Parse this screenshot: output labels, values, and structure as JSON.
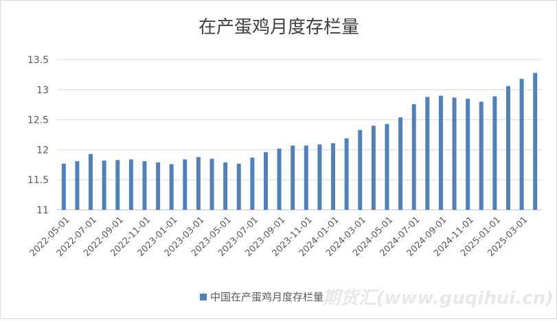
{
  "watermark": "期货汇(www.guqihui.cn)",
  "chart_data": {
    "type": "bar",
    "title": "在产蛋鸡月度存栏量",
    "xlabel": "",
    "ylabel": "",
    "ylim": [
      11,
      13.5
    ],
    "yticks": [
      11,
      11.5,
      12,
      12.5,
      13,
      13.5
    ],
    "grid": true,
    "legend_position": "bottom",
    "bar_color": "#4F81BD",
    "categories": [
      "2022-05-01",
      "2022-06-01",
      "2022-07-01",
      "2022-08-01",
      "2022-09-01",
      "2022-10-01",
      "2022-11-01",
      "2022-12-01",
      "2023-01-01",
      "2023-02-01",
      "2023-03-01",
      "2023-04-01",
      "2023-05-01",
      "2023-06-01",
      "2023-07-01",
      "2023-08-01",
      "2023-09-01",
      "2023-10-01",
      "2023-11-01",
      "2023-12-01",
      "2024-01-01",
      "2024-02-01",
      "2024-03-01",
      "2024-04-01",
      "2024-05-01",
      "2024-06-01",
      "2024-07-01",
      "2024-08-01",
      "2024-09-01",
      "2024-10-01",
      "2024-11-01",
      "2024-12-01",
      "2025-01-01",
      "2025-02-01",
      "2025-03-01",
      "2025-04-01"
    ],
    "tick_labels": [
      "2022-05-01",
      "2022-07-01",
      "2022-09-01",
      "2022-11-01",
      "2023-01-01",
      "2023-03-01",
      "2023-05-01",
      "2023-07-01",
      "2023-09-01",
      "2023-11-01",
      "2024-01-01",
      "2024-03-01",
      "2024-05-01",
      "2024-07-01",
      "2024-09-01",
      "2024-11-01",
      "2025-01-01",
      "2025-03-01"
    ],
    "series": [
      {
        "name": "中国在产蛋鸡月度存栏量",
        "values": [
          11.77,
          11.81,
          11.93,
          11.82,
          11.83,
          11.84,
          11.81,
          11.79,
          11.76,
          11.84,
          11.88,
          11.85,
          11.79,
          11.77,
          11.87,
          11.96,
          12.02,
          12.07,
          12.07,
          12.09,
          12.11,
          12.19,
          12.33,
          12.4,
          12.43,
          12.54,
          12.76,
          12.88,
          12.9,
          12.87,
          12.85,
          12.8,
          12.89,
          13.06,
          13.18,
          13.28
        ]
      }
    ]
  }
}
